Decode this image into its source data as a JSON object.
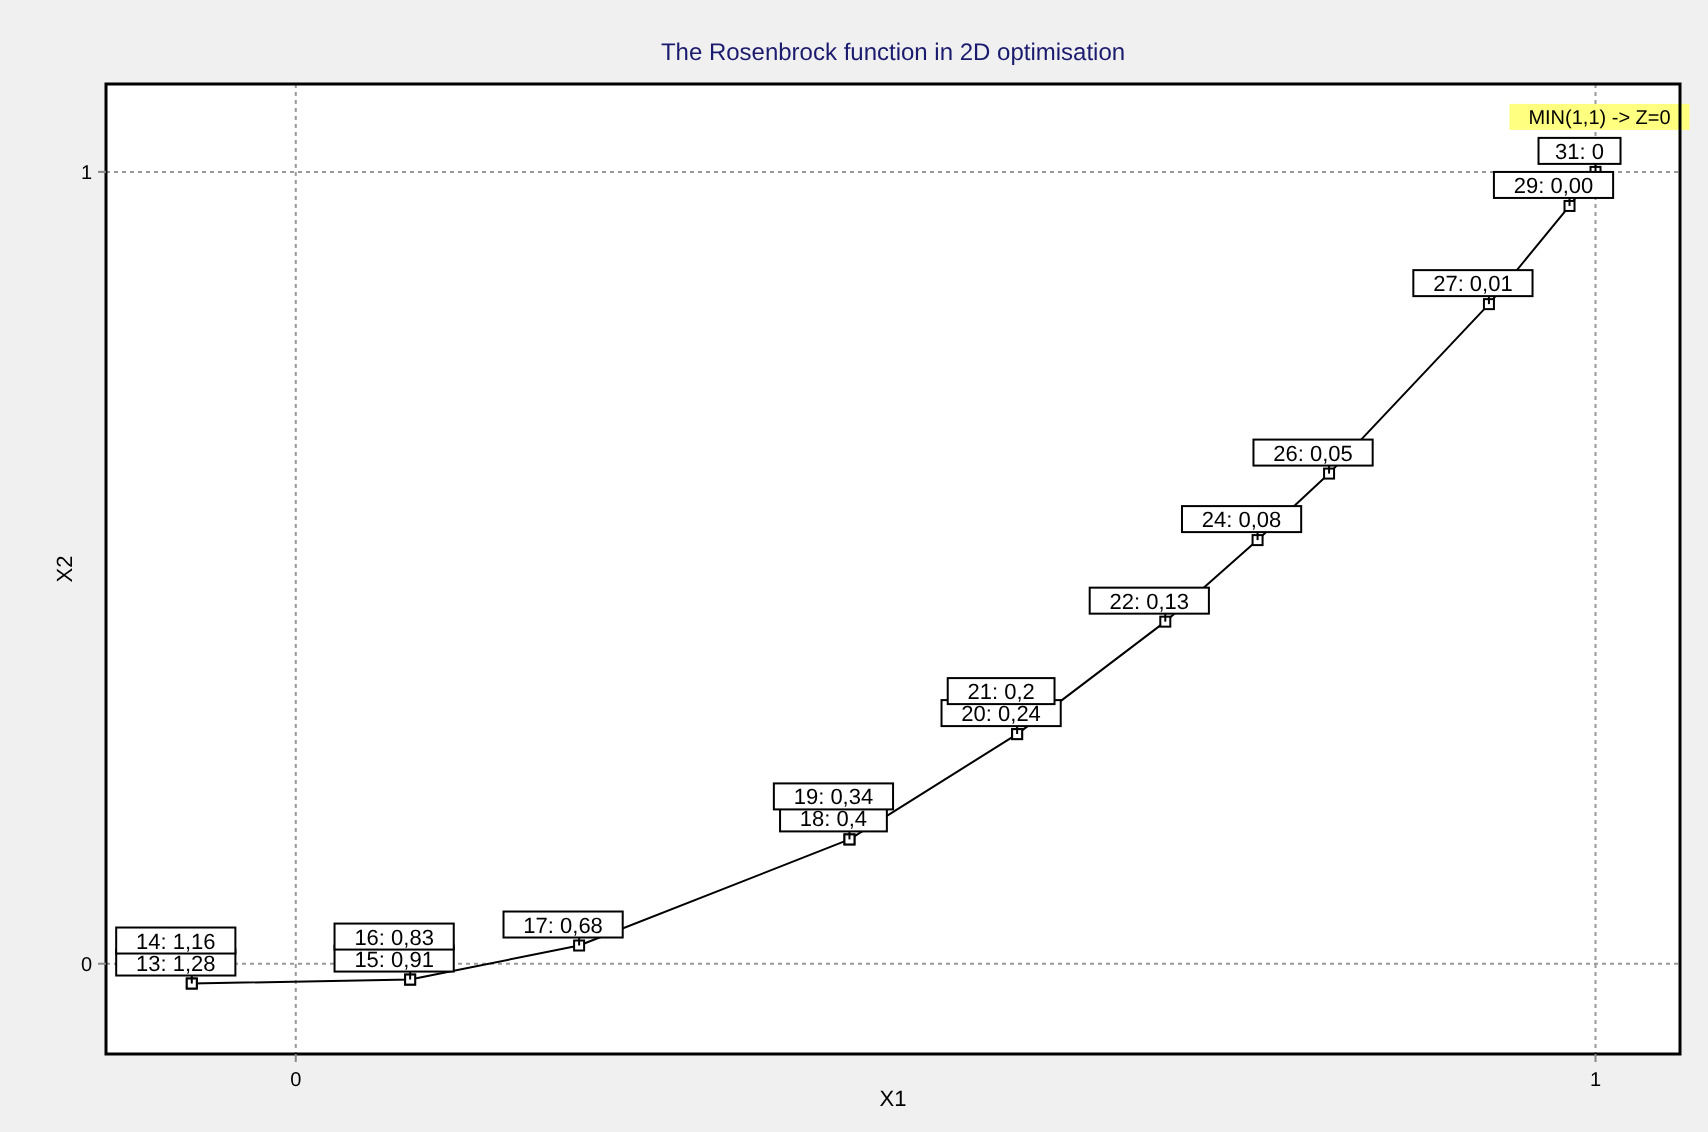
{
  "chart_data": {
    "type": "line",
    "title": "The Rosenbrock function in 2D optimisation",
    "xlabel": "X1",
    "ylabel": "X2",
    "xlim": [
      -0.146,
      1.065
    ],
    "ylim": [
      -0.114,
      1.111
    ],
    "xticks": [
      0,
      1
    ],
    "yticks": [
      0,
      1
    ],
    "grid": true,
    "marker": "square",
    "line_style": "solid",
    "series": [
      {
        "color": "#000000",
        "x": [
          -0.08,
          -0.08,
          0.088,
          0.088,
          0.218,
          0.426,
          0.426,
          0.555,
          0.555,
          0.669,
          0.74,
          0.795,
          0.918,
          0.98,
          1
        ],
        "values": [
          -0.025,
          -0.025,
          -0.02,
          -0.02,
          0.023,
          0.157,
          0.157,
          0.29,
          0.29,
          0.432,
          0.535,
          0.619,
          0.833,
          0.957,
          1
        ],
        "value_labels": [
          "13: 1,28",
          "14: 1,16",
          "15: 0,91",
          "16: 0,83",
          "17: 0,68",
          "18: 0,4",
          "19: 0,34",
          "20: 0,24",
          "21: 0,2",
          "22: 0,13",
          "24: 0,08",
          "26: 0,05",
          "27: 0,01",
          "29: 0,00",
          "31: 0"
        ]
      }
    ],
    "annotations": [
      {
        "text": "MIN(1,1) -> Z=0",
        "x": 1,
        "y": 1
      }
    ]
  }
}
